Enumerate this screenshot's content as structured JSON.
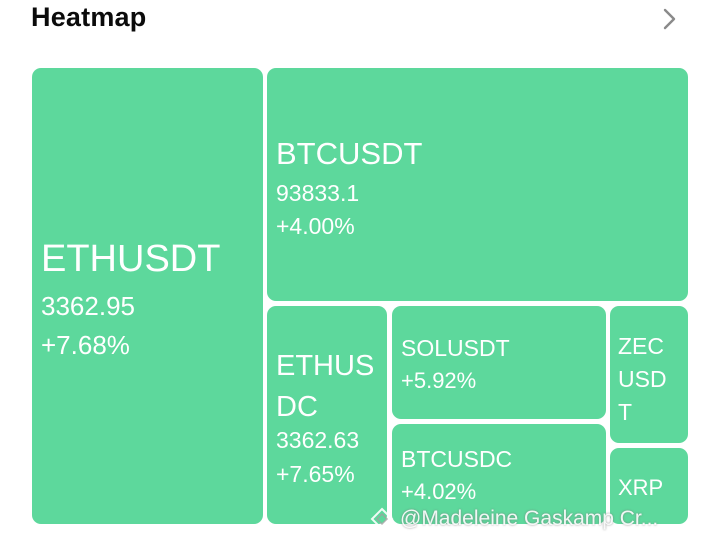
{
  "header": {
    "title": "Heatmap",
    "more_icon": "chevron-right-icon"
  },
  "colors": {
    "tile_green": "#5dd89c",
    "text": "#ffffff",
    "title": "#0b0b0b"
  },
  "tiles": [
    {
      "symbol": "ETHUSDT",
      "price": "3362.95",
      "change": "+7.68%"
    },
    {
      "symbol": "BTCUSDT",
      "price": "93833.1",
      "change": "+4.00%"
    },
    {
      "symbol": "ETHUS\nDC",
      "price": "3362.63",
      "change": "+7.65%"
    },
    {
      "symbol": "SOLUSDT",
      "change": "+5.92%"
    },
    {
      "symbol": "BTCUSDC",
      "change": "+4.02%"
    },
    {
      "symbol": "ZEC\nUSD\nT"
    },
    {
      "symbol": "XRP"
    }
  ],
  "watermark": {
    "icon": "diamond-logo-icon",
    "text": "@Madeleine Gaskamp Cr..."
  }
}
